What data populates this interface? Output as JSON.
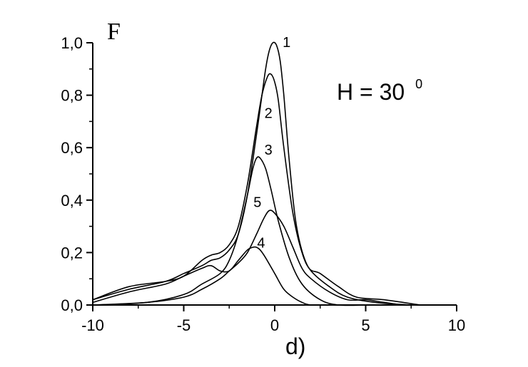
{
  "chart_data": {
    "type": "line",
    "ylabel": "F",
    "caption": "d)",
    "annotation": {
      "text": "H = 30",
      "superscript": "0"
    },
    "xlim": [
      -10,
      10
    ],
    "ylim": [
      0,
      1.0
    ],
    "xticks": [
      -10,
      -5,
      0,
      5,
      10
    ],
    "xtick_labels": [
      "-10",
      "-5",
      "0",
      "5",
      "10"
    ],
    "yticks": [
      0,
      0.2,
      0.4,
      0.6,
      0.8,
      1.0
    ],
    "ytick_labels": [
      "0,0",
      "0,2",
      "0,4",
      "0,6",
      "0,8",
      "1,0"
    ],
    "grid": false,
    "series": [
      {
        "name": "1",
        "x": [
          -10,
          -8,
          -6,
          -5,
          -4,
          -3.5,
          -3,
          -2.5,
          -2,
          -1.5,
          -1,
          -0.7,
          -0.5,
          -0.3,
          -0.1,
          0.1,
          0.3,
          0.5,
          0.8,
          1.2,
          1.8,
          2.5,
          3.5,
          4.5,
          6,
          8
        ],
        "y": [
          0.02,
          0.06,
          0.09,
          0.12,
          0.15,
          0.17,
          0.18,
          0.21,
          0.27,
          0.42,
          0.65,
          0.8,
          0.9,
          0.97,
          1.0,
          0.99,
          0.93,
          0.8,
          0.55,
          0.3,
          0.15,
          0.12,
          0.07,
          0.03,
          0.02,
          0.0
        ]
      },
      {
        "name": "2",
        "x": [
          -10,
          -8,
          -6,
          -5,
          -4,
          -3.5,
          -3,
          -2.5,
          -2,
          -1.5,
          -1,
          -0.7,
          -0.4,
          -0.2,
          0,
          0.2,
          0.5,
          1,
          1.5,
          2,
          3,
          4,
          5.5,
          7.5
        ],
        "y": [
          0.02,
          0.07,
          0.09,
          0.11,
          0.17,
          0.19,
          0.2,
          0.23,
          0.3,
          0.46,
          0.68,
          0.8,
          0.87,
          0.88,
          0.85,
          0.78,
          0.6,
          0.35,
          0.2,
          0.13,
          0.07,
          0.03,
          0.01,
          0.0
        ]
      },
      {
        "name": "3",
        "x": [
          -10,
          -7,
          -5,
          -4,
          -3,
          -2.5,
          -2,
          -1.5,
          -1.2,
          -1,
          -0.8,
          -0.5,
          -0.2,
          0.2,
          0.8,
          1.5,
          2.5,
          3.5,
          5
        ],
        "y": [
          0.0,
          0.01,
          0.04,
          0.08,
          0.12,
          0.17,
          0.27,
          0.42,
          0.52,
          0.56,
          0.56,
          0.52,
          0.44,
          0.32,
          0.18,
          0.08,
          0.02,
          0.0,
          0.0
        ]
      },
      {
        "name": "4",
        "x": [
          -10,
          -8,
          -6,
          -5,
          -4,
          -3.5,
          -3,
          -2.5,
          -2,
          -1.5,
          -1.2,
          -1,
          -0.8,
          -0.5,
          0,
          0.5,
          1,
          1.5,
          2,
          3
        ],
        "y": [
          0.01,
          0.05,
          0.08,
          0.11,
          0.14,
          0.15,
          0.13,
          0.13,
          0.17,
          0.21,
          0.22,
          0.22,
          0.21,
          0.18,
          0.12,
          0.06,
          0.03,
          0.01,
          0.0,
          0.0
        ]
      },
      {
        "name": "5",
        "x": [
          -10,
          -7,
          -5,
          -4,
          -3,
          -2.5,
          -2,
          -1.5,
          -1,
          -0.6,
          -0.3,
          0,
          0.5,
          1,
          1.5,
          2,
          3,
          4,
          5,
          6,
          7
        ],
        "y": [
          0.0,
          0.01,
          0.03,
          0.06,
          0.1,
          0.13,
          0.16,
          0.2,
          0.27,
          0.33,
          0.36,
          0.35,
          0.3,
          0.22,
          0.14,
          0.1,
          0.05,
          0.02,
          0.02,
          0.01,
          0.0
        ]
      }
    ],
    "labels": [
      {
        "text": "1",
        "x": 0.2,
        "y": 1.0
      },
      {
        "text": "2",
        "x": -0.8,
        "y": 0.73
      },
      {
        "text": "3",
        "x": -0.8,
        "y": 0.59
      },
      {
        "text": "4",
        "x": -1.2,
        "y": 0.235
      },
      {
        "text": "5",
        "x": -1.4,
        "y": 0.39
      }
    ]
  }
}
